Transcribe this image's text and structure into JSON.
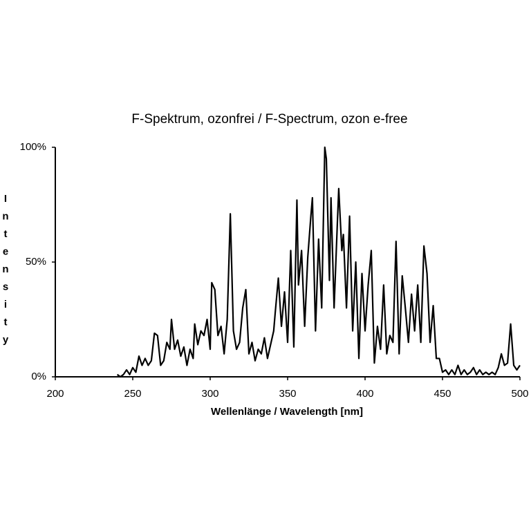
{
  "chart_data": {
    "type": "line",
    "title": "F-Spektrum, ozonfrei / F-Spectrum, ozon e-free",
    "x_label": "Wellenlänge / Wavelength  [nm]",
    "y_label": "Intensity",
    "color": "#000000",
    "grid": false,
    "xlim": [
      200,
      500
    ],
    "xticks": [
      200,
      250,
      300,
      350,
      400,
      450,
      500
    ],
    "ylim": [
      0,
      100
    ],
    "yticks": [
      {
        "value": 0,
        "label": "0%"
      },
      {
        "value": 50,
        "label": "50%"
      },
      {
        "value": 100,
        "label": "100%"
      }
    ],
    "x": [
      240,
      242,
      244,
      246,
      248,
      250,
      252,
      254,
      256,
      258,
      260,
      262,
      264,
      266,
      268,
      270,
      272,
      274,
      275,
      277,
      279,
      281,
      283,
      285,
      287,
      289,
      290,
      292,
      294,
      296,
      298,
      300,
      301,
      303,
      305,
      307,
      309,
      311,
      313,
      315,
      317,
      319,
      321,
      323,
      325,
      327,
      329,
      331,
      333,
      335,
      337,
      339,
      341,
      342,
      344,
      346,
      348,
      350,
      352,
      354,
      356,
      357,
      359,
      361,
      363,
      365,
      366,
      368,
      370,
      372,
      374,
      375,
      377,
      378,
      380,
      382,
      383,
      385,
      386,
      388,
      390,
      392,
      394,
      396,
      398,
      400,
      402,
      404,
      406,
      408,
      410,
      412,
      414,
      416,
      418,
      420,
      422,
      424,
      426,
      428,
      430,
      432,
      434,
      436,
      438,
      440,
      442,
      444,
      446,
      448,
      450,
      452,
      454,
      456,
      458,
      460,
      462,
      464,
      466,
      468,
      470,
      472,
      474,
      476,
      478,
      480,
      482,
      484,
      486,
      488,
      490,
      492,
      494,
      496,
      498,
      500
    ],
    "values": [
      1,
      0,
      1,
      3,
      1,
      4,
      2,
      9,
      5,
      8,
      5,
      7,
      19,
      18,
      5,
      7,
      15,
      12,
      25,
      12,
      16,
      9,
      13,
      5,
      12,
      8,
      23,
      14,
      20,
      18,
      25,
      12,
      41,
      38,
      18,
      22,
      10,
      25,
      71,
      20,
      12,
      15,
      30,
      38,
      10,
      15,
      7,
      12,
      10,
      17,
      8,
      14,
      20,
      28,
      43,
      22,
      37,
      15,
      55,
      13,
      77,
      40,
      55,
      22,
      52,
      70,
      78,
      20,
      60,
      30,
      100,
      95,
      42,
      78,
      30,
      65,
      82,
      55,
      62,
      30,
      70,
      20,
      50,
      8,
      45,
      20,
      40,
      55,
      6,
      22,
      12,
      40,
      10,
      18,
      15,
      59,
      10,
      44,
      30,
      15,
      36,
      20,
      40,
      15,
      57,
      45,
      15,
      31,
      8,
      8,
      2,
      3,
      1,
      3,
      1,
      5,
      1,
      3,
      1,
      2,
      4,
      1,
      3,
      1,
      2,
      1,
      2,
      1,
      4,
      10,
      5,
      6,
      23,
      5,
      3,
      5
    ]
  }
}
